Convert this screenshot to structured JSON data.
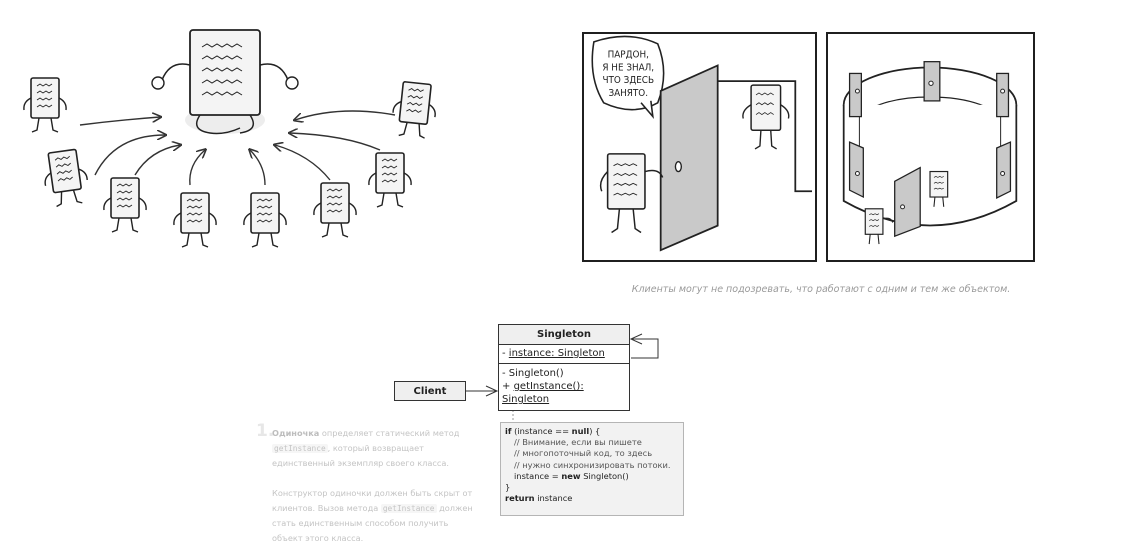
{
  "illustration_right": {
    "speech": [
      "ПАРДОН,",
      "Я НЕ ЗНАЛ,",
      "ЧТО ЗДЕСЬ",
      "ЗАНЯТО."
    ]
  },
  "caption": "Клиенты могут не подозревать, что работают с одним и тем же объектом.",
  "uml": {
    "singleton": {
      "name": "Singleton",
      "field_prefix": "- ",
      "field": "instance: Singleton",
      "ctor": "- Singleton()",
      "method_prefix": "+ ",
      "method": "getInstance(): Singleton"
    },
    "client": "Client",
    "note": {
      "l1_kw": "if",
      "l1_a": " (instance == ",
      "l1_null": "null",
      "l1_b": ") {",
      "c1": "// Внимание, если вы пишете",
      "c2": "// многопоточный код, то здесь",
      "c3": "// нужно синхронизировать потоки.",
      "l5_a": "instance = ",
      "l5_new": "new",
      "l5_b": " Singleton()",
      "l6": "}",
      "l7_kw": "return",
      "l7_b": " instance"
    }
  },
  "step": {
    "number": "1.",
    "p1_bold": "Одиночка",
    "p1_a": " определяет статический метод ",
    "p1_code": "getInstance",
    "p1_b": ", который возвращает единственный экземпляр своего класса.",
    "p2_a": "Конструктор одиночки должен быть скрыт от клиентов. Вызов метода ",
    "p2_code": "getInstance",
    "p2_b": " должен стать единственным способом получить объект этого класса."
  }
}
